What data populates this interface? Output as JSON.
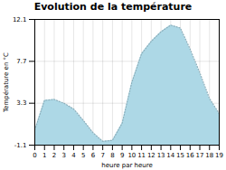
{
  "chart_data": {
    "type": "area",
    "title": "Evolution de la température",
    "xlabel": "heure par heure",
    "ylabel": "Température en °C",
    "x": [
      0,
      1,
      2,
      3,
      4,
      5,
      6,
      7,
      8,
      9,
      10,
      11,
      12,
      13,
      14,
      15,
      16,
      17,
      18,
      19
    ],
    "values": [
      0.5,
      3.6,
      3.7,
      3.3,
      2.7,
      1.5,
      0.2,
      -0.7,
      -0.6,
      1.2,
      5.5,
      8.5,
      9.8,
      10.8,
      11.5,
      11.2,
      9.0,
      6.5,
      3.8,
      2.2
    ],
    "xlim": [
      0,
      19
    ],
    "ylim": [
      -1.1,
      12.1
    ],
    "xticks": [
      0,
      1,
      2,
      3,
      4,
      5,
      6,
      7,
      8,
      9,
      10,
      11,
      12,
      13,
      14,
      15,
      16,
      17,
      18,
      19
    ],
    "yticks": [
      -1.1,
      3.3,
      7.7,
      12.1
    ],
    "color": "#add8e6",
    "line_style": "dotted",
    "grid": true
  }
}
